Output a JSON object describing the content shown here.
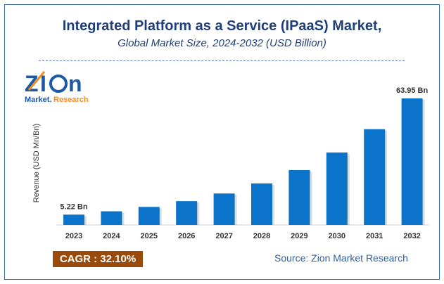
{
  "title": "Integrated Platform as a Service (IPaaS) Market,",
  "subtitle": "Global Market Size, 2024-2032 (USD Billion)",
  "logo": {
    "text_main": "Zion",
    "text_sub": "Market.Research"
  },
  "cagr": "CAGR :  32.10%",
  "source": "Source: Zion Market Research",
  "colors": {
    "bar": "#0b73c9",
    "title": "#1f3f7a",
    "cagr_bg": "#9a4a0a"
  },
  "chart_data": {
    "type": "bar",
    "categories": [
      "2023",
      "2024",
      "2025",
      "2026",
      "2027",
      "2028",
      "2029",
      "2030",
      "2031",
      "2032"
    ],
    "values": [
      5.22,
      6.9,
      9.11,
      12.03,
      15.89,
      20.99,
      27.73,
      36.63,
      48.39,
      63.95
    ],
    "data_labels": {
      "2023": "5.22 Bn",
      "2032": "63.95 Bn"
    },
    "ylabel": "Revenue (USD Mn/Bn)",
    "xlabel": "",
    "ylim": [
      0,
      64
    ],
    "grid": false
  }
}
